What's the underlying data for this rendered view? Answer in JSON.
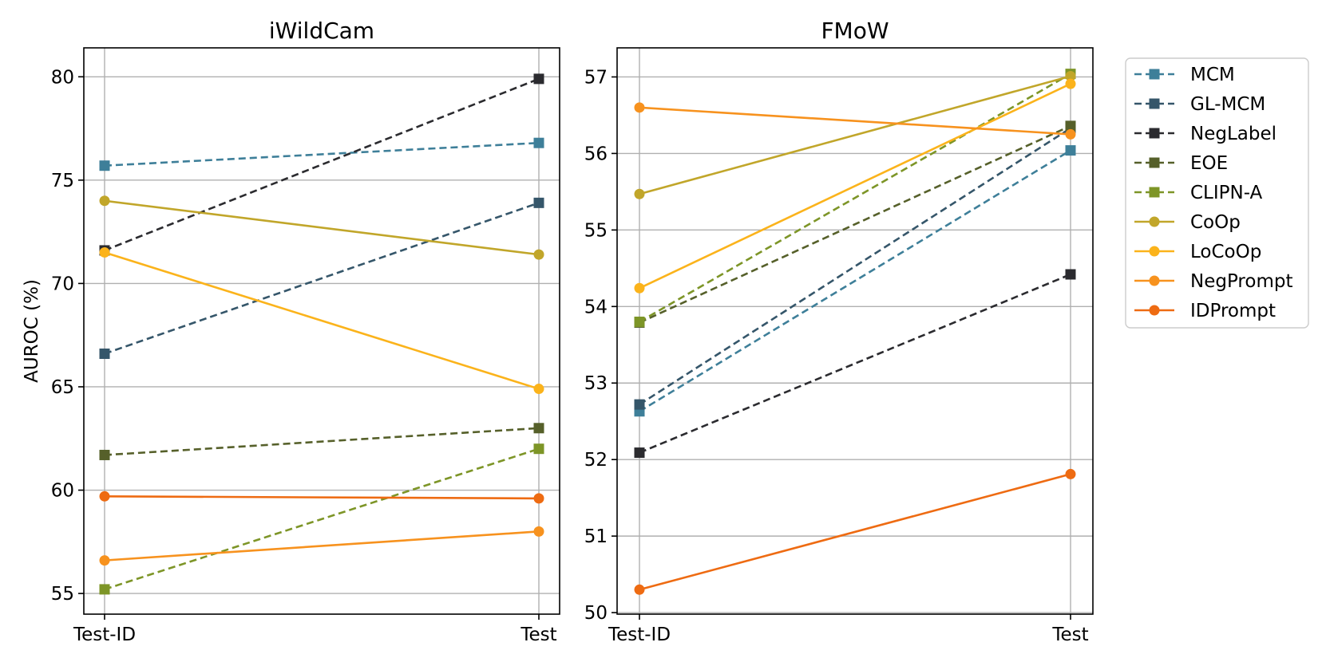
{
  "chart_data": [
    {
      "type": "line",
      "title": "iWildCam",
      "xlabel": "",
      "ylabel": "AUROC (%)",
      "categories": [
        "Test-ID",
        "Test"
      ],
      "ylim": [
        54,
        81.4
      ],
      "yticks": [
        55,
        60,
        65,
        70,
        75,
        80
      ],
      "grid": true,
      "series": [
        {
          "name": "MCM",
          "values": [
            75.7,
            76.8
          ],
          "color": "#3e7f99",
          "dashed": true,
          "marker": "square"
        },
        {
          "name": "GL-MCM",
          "values": [
            66.6,
            73.9
          ],
          "color": "#35566a",
          "dashed": true,
          "marker": "square"
        },
        {
          "name": "NegLabel",
          "values": [
            71.6,
            79.9
          ],
          "color": "#2b2b2f",
          "dashed": true,
          "marker": "square"
        },
        {
          "name": "EOE",
          "values": [
            61.7,
            63.0
          ],
          "color": "#56602a",
          "dashed": true,
          "marker": "square"
        },
        {
          "name": "CLIPN-A",
          "values": [
            55.2,
            62.0
          ],
          "color": "#7d9527",
          "dashed": true,
          "marker": "square"
        },
        {
          "name": "CoOp",
          "values": [
            74.0,
            71.4
          ],
          "color": "#c1a62a",
          "dashed": false,
          "marker": "circle"
        },
        {
          "name": "LoCoOp",
          "values": [
            71.5,
            64.9
          ],
          "color": "#fbb31b",
          "dashed": false,
          "marker": "circle"
        },
        {
          "name": "NegPrompt",
          "values": [
            56.6,
            58.0
          ],
          "color": "#f7921e",
          "dashed": false,
          "marker": "circle"
        },
        {
          "name": "IDPrompt",
          "values": [
            59.7,
            59.6
          ],
          "color": "#ee6b12",
          "dashed": false,
          "marker": "circle"
        }
      ]
    },
    {
      "type": "line",
      "title": "FMoW",
      "xlabel": "",
      "ylabel": "",
      "categories": [
        "Test-ID",
        "Test"
      ],
      "ylim": [
        49.98,
        57.38
      ],
      "yticks": [
        50,
        51,
        52,
        53,
        54,
        55,
        56,
        57
      ],
      "grid": true,
      "series": [
        {
          "name": "MCM",
          "values": [
            52.63,
            56.04
          ],
          "color": "#3e7f99",
          "dashed": true,
          "marker": "square"
        },
        {
          "name": "GL-MCM",
          "values": [
            52.72,
            56.33
          ],
          "color": "#35566a",
          "dashed": true,
          "marker": "square"
        },
        {
          "name": "NegLabel",
          "values": [
            52.09,
            54.42
          ],
          "color": "#2b2b2f",
          "dashed": true,
          "marker": "square"
        },
        {
          "name": "EOE",
          "values": [
            53.79,
            56.36
          ],
          "color": "#56602a",
          "dashed": true,
          "marker": "square"
        },
        {
          "name": "CLIPN-A",
          "values": [
            53.8,
            57.04
          ],
          "color": "#7d9527",
          "dashed": true,
          "marker": "square"
        },
        {
          "name": "CoOp",
          "values": [
            55.47,
            57.01
          ],
          "color": "#c1a62a",
          "dashed": false,
          "marker": "circle"
        },
        {
          "name": "LoCoOp",
          "values": [
            54.24,
            56.91
          ],
          "color": "#fbb31b",
          "dashed": false,
          "marker": "circle"
        },
        {
          "name": "NegPrompt",
          "values": [
            56.6,
            56.25
          ],
          "color": "#f7921e",
          "dashed": false,
          "marker": "circle"
        },
        {
          "name": "IDPrompt",
          "values": [
            50.3,
            51.81
          ],
          "color": "#ee6b12",
          "dashed": false,
          "marker": "circle"
        }
      ]
    }
  ],
  "legend": {
    "placement": "outside-right",
    "entries": [
      "MCM",
      "GL-MCM",
      "NegLabel",
      "EOE",
      "CLIPN-A",
      "CoOp",
      "LoCoOp",
      "NegPrompt",
      "IDPrompt"
    ]
  }
}
